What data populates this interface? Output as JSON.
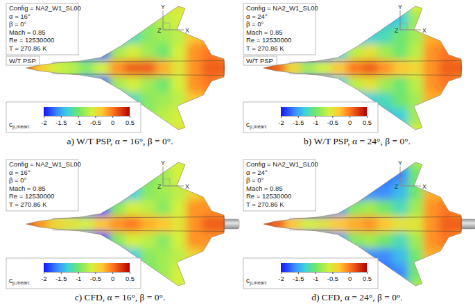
{
  "chart_data": [
    {
      "type": "heatmap",
      "title": "a) W/T PSP, α = 16°, β = 0°.",
      "info": [
        "Config = NA2_W1_SL00",
        "α = 16°",
        "β = 0°",
        "Mach = 0.85",
        "Re = 12530000",
        "T = 270.86 K"
      ],
      "badge": "W/T PSP",
      "triad": [
        "Y",
        "Z",
        "X"
      ],
      "colorbar": {
        "label": "c",
        "label_sub": "p,mean:",
        "range": [
          -2,
          0.5
        ],
        "ticks": [
          -2,
          -1.5,
          -1,
          -0.5,
          0,
          0.5
        ]
      },
      "cells": [
        [
          -1,
          -1,
          -1,
          -1,
          -1,
          -1,
          -1,
          -1,
          -0.8,
          -0.6,
          -0.5,
          -0.5,
          -0.5,
          -0.5
        ],
        [
          -1,
          -1,
          -1,
          -1,
          -1,
          -1,
          -1,
          -1,
          -0.9,
          -0.7,
          -0.6,
          -0.5,
          -0.5,
          -0.5
        ],
        [
          -1,
          -1,
          -1,
          -1,
          -1.2,
          -1.4,
          -1.5,
          -1.2,
          -0.9,
          -0.8,
          -0.7,
          -0.3,
          -0.2,
          -0.2
        ],
        [
          -0.6,
          -0.8,
          -0.9,
          -1,
          -1.6,
          -1.8,
          -0.8,
          -0.6,
          -0.8,
          -1,
          -0.6,
          -0.1,
          0,
          -0.1
        ],
        [
          0.3,
          -0.3,
          -0.6,
          -0.7,
          -0.9,
          -0.6,
          -0.1,
          0.1,
          0.1,
          -0.2,
          -0.5,
          -0.1,
          0.1,
          0.1
        ],
        [
          -0.6,
          -0.8,
          -0.9,
          -1,
          -1.6,
          -1.8,
          -0.8,
          -0.6,
          -0.8,
          -1,
          -0.6,
          -0.1,
          0,
          -0.1
        ],
        [
          -1,
          -1,
          -1,
          -1,
          -1.2,
          -1.4,
          -1.5,
          -1.2,
          -0.9,
          -0.8,
          -0.7,
          -0.3,
          -0.2,
          -0.2
        ],
        [
          -1,
          -1,
          -1,
          -1,
          -1,
          -1,
          -1,
          -1,
          -0.9,
          -0.7,
          -0.6,
          -0.5,
          -0.5,
          -0.5
        ],
        [
          -1,
          -1,
          -1,
          -1,
          -1,
          -1,
          -1,
          -1,
          -0.8,
          -0.6,
          -0.5,
          -0.5,
          -0.5,
          -0.5
        ]
      ]
    },
    {
      "type": "heatmap",
      "title": "b) W/T PSP, α = 24°, β = 0°.",
      "info": [
        "Config = NA2_W1_SL00",
        "α = 24°",
        "β = 0°",
        "Mach = 0.85",
        "Re = 12530000",
        "T = 270.86 K"
      ],
      "badge": "W/T PSP",
      "triad": [
        "Y",
        "Z",
        "X"
      ],
      "colorbar": {
        "label": "c",
        "label_sub": "p,mean:",
        "range": [
          -2,
          0.5
        ],
        "ticks": [
          -2,
          -1.5,
          -1,
          -0.5,
          0,
          0.5
        ]
      },
      "cells": [
        [
          -1.5,
          -1.5,
          -1.5,
          -1.5,
          -1.5,
          -1.5,
          -1.5,
          -1.4,
          -1.3,
          -1.2,
          -0.6,
          -0.5,
          -0.5,
          -0.5
        ],
        [
          -1.5,
          -1.5,
          -1.5,
          -1.5,
          -1.5,
          -1.5,
          -1.5,
          -1.5,
          -1.4,
          -1.3,
          -0.8,
          -0.5,
          -0.5,
          -0.5
        ],
        [
          -1.2,
          -1.2,
          -1.2,
          -1.4,
          -1.6,
          -1.8,
          -1.5,
          -1.3,
          -1.2,
          -1,
          -0.8,
          -0.2,
          -0.2,
          -0.2
        ],
        [
          -0.8,
          -0.9,
          -1.2,
          -1.7,
          -1.9,
          -1.3,
          -0.7,
          -0.5,
          -0.8,
          -1,
          -0.7,
          -0.1,
          0,
          -0.1
        ],
        [
          0.3,
          0.1,
          -0.4,
          -0.8,
          -0.6,
          -0.3,
          0,
          0.1,
          -0.1,
          -0.3,
          -0.4,
          -0.1,
          0.1,
          0.1
        ],
        [
          -0.8,
          -0.9,
          -1.2,
          -1.7,
          -1.9,
          -1.3,
          -0.7,
          -0.5,
          -0.8,
          -1,
          -0.7,
          -0.1,
          0,
          -0.1
        ],
        [
          -1.2,
          -1.2,
          -1.2,
          -1.4,
          -1.6,
          -1.8,
          -1.5,
          -1.3,
          -1.2,
          -1,
          -0.8,
          -0.2,
          -0.2,
          -0.2
        ],
        [
          -1.5,
          -1.5,
          -1.5,
          -1.5,
          -1.5,
          -1.5,
          -1.5,
          -1.5,
          -1.4,
          -1.3,
          -0.8,
          -0.5,
          -0.5,
          -0.5
        ],
        [
          -1.5,
          -1.5,
          -1.5,
          -1.5,
          -1.5,
          -1.5,
          -1.5,
          -1.4,
          -1.3,
          -1.2,
          -0.6,
          -0.5,
          -0.5,
          -0.5
        ]
      ]
    },
    {
      "type": "heatmap",
      "title": "c) CFD, α = 16°, β = 0°.",
      "info": [
        "Config = NA2_W1_SL00",
        "α = 16°",
        "β = 0°",
        "Mach = 0.85",
        "Re = 12530000",
        "T = 270.86 K"
      ],
      "triad": [
        "Y",
        "Z",
        "X"
      ],
      "colorbar": {
        "label": "c",
        "label_sub": "p,mean:",
        "range": [
          -2,
          0.5
        ],
        "ticks": [
          -2,
          -1.5,
          -1,
          -0.5,
          0,
          0.5
        ]
      },
      "cells": [
        [
          -1,
          -1,
          -1,
          -1,
          -1,
          -1,
          -1,
          -1,
          -0.8,
          -0.7,
          -0.6,
          -0.6,
          -0.6,
          -0.6
        ],
        [
          -1,
          -1,
          -1,
          -1,
          -1,
          -1,
          -1,
          -1.1,
          -1,
          -0.8,
          -0.6,
          -0.6,
          -0.6,
          -0.6
        ],
        [
          -1,
          -1,
          -1,
          -1.1,
          -1.4,
          -1.6,
          -1.7,
          -1.3,
          -0.9,
          -0.8,
          -0.7,
          -0.4,
          -0.2,
          -0.2
        ],
        [
          -0.6,
          -0.8,
          -1,
          -1.2,
          -1.8,
          -1.9,
          -0.9,
          -0.6,
          -0.7,
          -0.9,
          -0.6,
          -0.1,
          -0.1,
          -0.1
        ],
        [
          0.3,
          -0.1,
          -0.4,
          -0.5,
          -0.6,
          -0.3,
          -0.1,
          0,
          -0.2,
          -0.3,
          -0.5,
          -0.1,
          0.1,
          0.1
        ],
        [
          -0.6,
          -0.8,
          -1,
          -1.2,
          -1.8,
          -1.9,
          -0.9,
          -0.6,
          -0.7,
          -0.9,
          -0.6,
          -0.1,
          -0.1,
          -0.1
        ],
        [
          -1,
          -1,
          -1,
          -1.1,
          -1.4,
          -1.6,
          -1.7,
          -1.3,
          -0.9,
          -0.8,
          -0.7,
          -0.4,
          -0.2,
          -0.2
        ],
        [
          -1,
          -1,
          -1,
          -1,
          -1,
          -1,
          -1,
          -1.1,
          -1,
          -0.8,
          -0.6,
          -0.6,
          -0.6,
          -0.6
        ],
        [
          -1,
          -1,
          -1,
          -1,
          -1,
          -1,
          -1,
          -1,
          -0.8,
          -0.7,
          -0.6,
          -0.6,
          -0.6,
          -0.6
        ]
      ]
    },
    {
      "type": "heatmap",
      "title": "d) CFD, α = 24°, β = 0°.",
      "info": [
        "Config = NA2_W1_SL00",
        "α = 24°",
        "β = 0°",
        "Mach = 0.85",
        "Re = 12530000",
        "T = 270.86 K"
      ],
      "triad": [
        "Y",
        "Z",
        "X"
      ],
      "colorbar": {
        "label": "c",
        "label_sub": "p,mean:",
        "range": [
          -2,
          0.5
        ],
        "ticks": [
          -2,
          -1.5,
          -1,
          -0.5,
          0,
          0.5
        ]
      },
      "cells": [
        [
          -1.6,
          -1.6,
          -1.6,
          -1.6,
          -1.6,
          -1.6,
          -1.6,
          -1.6,
          -1.5,
          -1.4,
          -0.8,
          -0.6,
          -0.6,
          -0.6
        ],
        [
          -1.6,
          -1.6,
          -1.6,
          -1.6,
          -1.6,
          -1.6,
          -1.7,
          -1.7,
          -1.7,
          -1.6,
          -1,
          -0.6,
          -0.6,
          -0.6
        ],
        [
          -1.3,
          -1.3,
          -1.4,
          -1.6,
          -1.9,
          -2,
          -1.8,
          -1.6,
          -1.6,
          -1.4,
          -1,
          -0.2,
          -0.2,
          -0.2
        ],
        [
          -0.8,
          -1,
          -1.4,
          -1.8,
          -2,
          -1.5,
          -0.9,
          -0.8,
          -1,
          -1.2,
          -0.8,
          -0.1,
          0,
          -0.1
        ],
        [
          0.3,
          0.1,
          -0.3,
          -0.6,
          -0.5,
          -0.3,
          -0.2,
          -0.1,
          -0.3,
          -0.5,
          -0.5,
          -0.1,
          0.1,
          0.1
        ],
        [
          -0.8,
          -1,
          -1.4,
          -1.8,
          -2,
          -1.5,
          -0.9,
          -0.8,
          -1,
          -1.2,
          -0.8,
          -0.1,
          0,
          -0.1
        ],
        [
          -1.3,
          -1.3,
          -1.4,
          -1.6,
          -1.9,
          -2,
          -1.8,
          -1.6,
          -1.6,
          -1.4,
          -1,
          -0.2,
          -0.2,
          -0.2
        ],
        [
          -1.6,
          -1.6,
          -1.6,
          -1.6,
          -1.6,
          -1.6,
          -1.7,
          -1.7,
          -1.7,
          -1.6,
          -1,
          -0.6,
          -0.6,
          -0.6
        ],
        [
          -1.6,
          -1.6,
          -1.6,
          -1.6,
          -1.6,
          -1.6,
          -1.6,
          -1.6,
          -1.5,
          -1.4,
          -0.8,
          -0.6,
          -0.6,
          -0.6
        ]
      ]
    }
  ]
}
